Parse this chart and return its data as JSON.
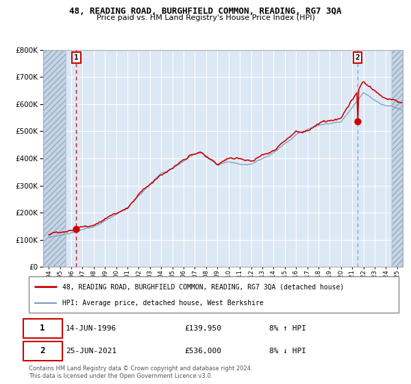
{
  "title": "48, READING ROAD, BURGHFIELD COMMON, READING, RG7 3QA",
  "subtitle": "Price paid vs. HM Land Registry's House Price Index (HPI)",
  "legend_line1": "48, READING ROAD, BURGHFIELD COMMON, READING, RG7 3QA (detached house)",
  "legend_line2": "HPI: Average price, detached house, West Berkshire",
  "transaction1_date": "14-JUN-1996",
  "transaction1_price": "£139,950",
  "transaction1_hpi": "8% ↑ HPI",
  "transaction2_date": "25-JUN-2021",
  "transaction2_price": "£536,000",
  "transaction2_hpi": "8% ↓ HPI",
  "footnote": "Contains HM Land Registry data © Crown copyright and database right 2024.\nThis data is licensed under the Open Government Licence v3.0.",
  "price_line_color": "#cc0000",
  "hpi_line_color": "#7799bb",
  "transaction1_x": 1996.45,
  "transaction2_x": 2021.48,
  "transaction1_y": 139950,
  "transaction2_y": 536000,
  "ylim": [
    0,
    800000
  ],
  "xlim_left": 1993.5,
  "xlim_right": 2025.5,
  "bg_color": "#dde8f5",
  "hatch_bg_color": "#c5d5e8",
  "grid_color": "#ffffff",
  "border_color": "#aaaaaa",
  "box_border_color": "#cc0000"
}
